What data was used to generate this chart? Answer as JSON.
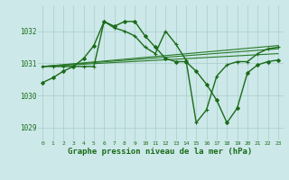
{
  "bg_color": "#cce8e8",
  "grid_color": "#aacccc",
  "xlabel": "Graphe pression niveau de la mer (hPa)",
  "xlabel_fontsize": 6.5,
  "ylabel_ticks": [
    1029,
    1030,
    1031,
    1032
  ],
  "xlim": [
    -0.5,
    23.5
  ],
  "ylim": [
    1028.6,
    1032.8
  ],
  "figsize": [
    3.2,
    2.0
  ],
  "dpi": 100,
  "series": [
    {
      "x": [
        0,
        1,
        2,
        3,
        4,
        5,
        6,
        7,
        8,
        9,
        10,
        11,
        12,
        13,
        14,
        15,
        16,
        17,
        18,
        19,
        20,
        21,
        22,
        23
      ],
      "y": [
        1030.4,
        1030.55,
        1030.75,
        1030.9,
        1031.15,
        1031.55,
        1032.3,
        1032.15,
        1032.3,
        1032.3,
        1031.85,
        1031.5,
        1031.15,
        1031.05,
        1031.05,
        1030.75,
        1030.35,
        1029.85,
        1029.15,
        1029.6,
        1030.7,
        1030.95,
        1031.05,
        1031.1
      ],
      "marker": "D",
      "ms": 2.0,
      "lw": 1.0,
      "color": "#1a6b1a"
    },
    {
      "x": [
        0,
        1,
        2,
        3,
        4,
        5,
        6,
        7,
        8,
        9,
        10,
        11,
        12,
        13,
        14,
        15,
        16,
        17,
        18,
        19,
        20,
        21,
        22,
        23
      ],
      "y": [
        1030.9,
        1030.9,
        1030.9,
        1030.9,
        1030.9,
        1030.9,
        1032.3,
        1032.1,
        1032.0,
        1031.85,
        1031.5,
        1031.3,
        1032.0,
        1031.6,
        1031.1,
        1029.15,
        1029.55,
        1030.6,
        1030.95,
        1031.05,
        1031.05,
        1031.3,
        1031.45,
        1031.5
      ],
      "marker": "+",
      "ms": 3.5,
      "lw": 1.0,
      "color": "#1a6b1a"
    },
    {
      "x": [
        0,
        23
      ],
      "y": [
        1030.9,
        1031.3
      ],
      "marker": null,
      "lw": 0.8,
      "color": "#2a7a2a"
    },
    {
      "x": [
        0,
        23
      ],
      "y": [
        1030.9,
        1031.45
      ],
      "marker": null,
      "lw": 0.8,
      "color": "#2a7a2a"
    },
    {
      "x": [
        0,
        23
      ],
      "y": [
        1030.9,
        1031.55
      ],
      "marker": null,
      "lw": 0.8,
      "color": "#2a7a2a"
    }
  ]
}
